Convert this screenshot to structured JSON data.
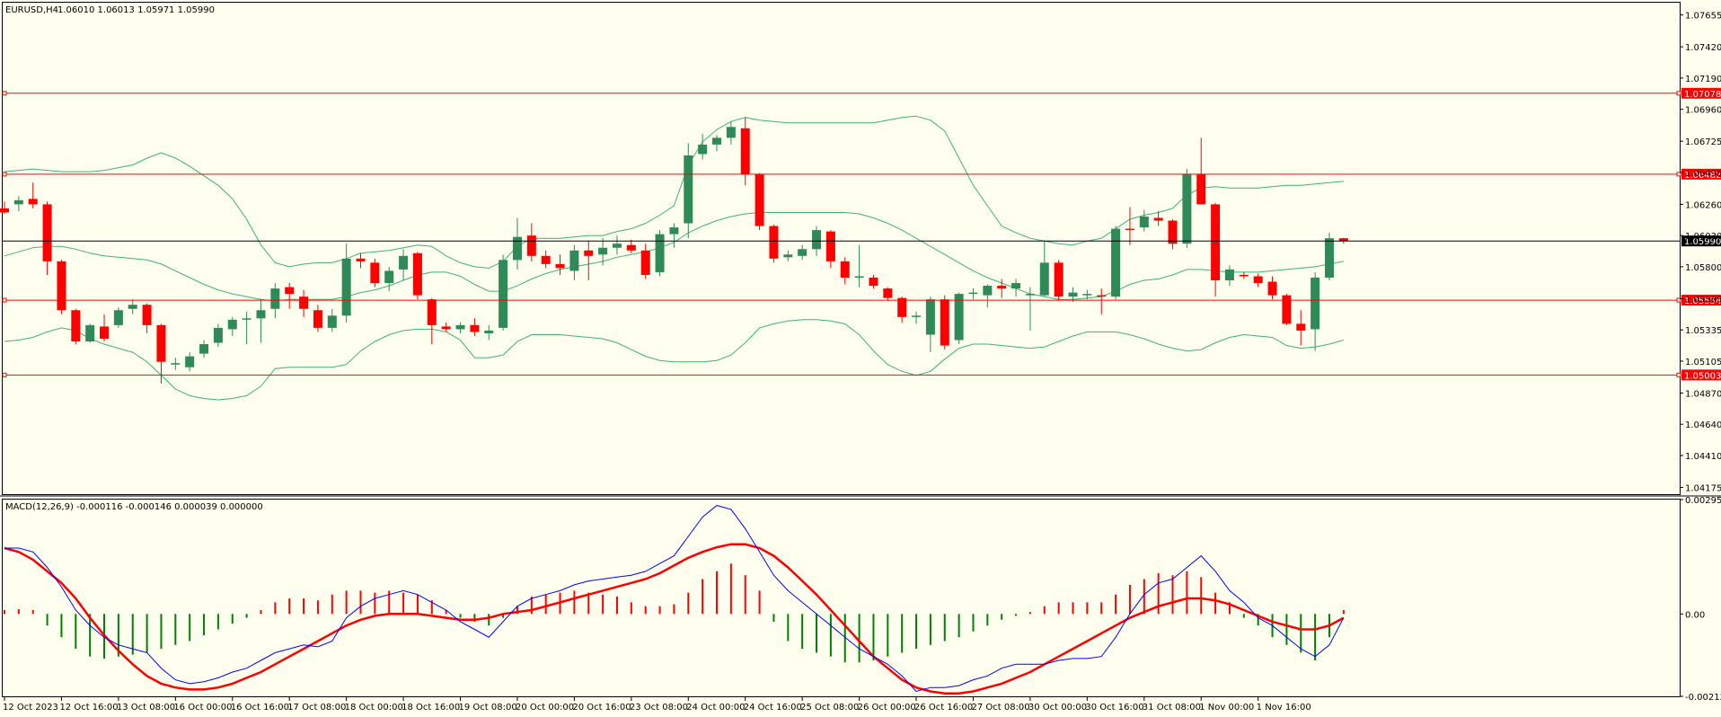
{
  "main_header": {
    "symbol": "EURUSD,H4",
    "ohlc": "1.06010 1.06013 1.05971 1.05990"
  },
  "macd_header": {
    "text": "MACD(12,26,9) -0.000116 -0.000146 0.000039 0.000000"
  },
  "price_axis": {
    "ticks": [
      "1.07655",
      "1.07420",
      "1.07190",
      "1.06960",
      "1.06725",
      "1.06495",
      "1.06260",
      "1.06030",
      "1.05800",
      "1.05565",
      "1.05335",
      "1.05105",
      "1.04870",
      "1.04640",
      "1.04410",
      "1.04175"
    ]
  },
  "macd_axis": {
    "ticks": [
      "0.002952",
      "0.00",
      "-0.002127"
    ]
  },
  "time_axis": {
    "labels": [
      "12 Oct 2023",
      "12 Oct 16:00",
      "13 Oct 08:00",
      "16 Oct 00:00",
      "16 Oct 16:00",
      "17 Oct 08:00",
      "18 Oct 00:00",
      "18 Oct 16:00",
      "19 Oct 08:00",
      "20 Oct 00:00",
      "20 Oct 16:00",
      "23 Oct 08:00",
      "24 Oct 00:00",
      "24 Oct 16:00",
      "25 Oct 08:00",
      "26 Oct 00:00",
      "26 Oct 16:00",
      "27 Oct 08:00",
      "30 Oct 00:00",
      "30 Oct 16:00",
      "31 Oct 08:00",
      "1 Nov 00:00",
      "1 Nov 16:00"
    ]
  },
  "levels": [
    {
      "price": "1.07078",
      "color": "#ff0000"
    },
    {
      "price": "1.06482",
      "color": "#ff0000"
    },
    {
      "price": "1.05990",
      "color": "#000000"
    },
    {
      "price": "1.05554",
      "color": "#ff0000"
    },
    {
      "price": "1.05003",
      "color": "#ff0000"
    }
  ],
  "colors": {
    "background": "#fffff0",
    "bull": "#2e8b57",
    "bear": "#ff0000",
    "bands": "#3cb371",
    "macd_line": "#0000ff",
    "signal_line": "#ff0000",
    "hist_positive": "#ff0000",
    "hist_negative": "#008000",
    "grid": "#000000"
  },
  "chart_data": {
    "type": "candlestick",
    "symbol": "EURUSD",
    "timeframe": "H4",
    "price_range": [
      1.04125,
      1.07745
    ],
    "candles": [
      {
        "o": 1.0623,
        "h": 1.0628,
        "l": 1.0619,
        "c": 1.062
      },
      {
        "o": 1.0626,
        "h": 1.0632,
        "l": 1.0621,
        "c": 1.0629
      },
      {
        "o": 1.063,
        "h": 1.0642,
        "l": 1.0623,
        "c": 1.0626
      },
      {
        "o": 1.0626,
        "h": 1.0628,
        "l": 1.0574,
        "c": 1.0584
      },
      {
        "o": 1.0584,
        "h": 1.0585,
        "l": 1.0545,
        "c": 1.0548
      },
      {
        "o": 1.0548,
        "h": 1.0549,
        "l": 1.0523,
        "c": 1.0525
      },
      {
        "o": 1.0525,
        "h": 1.0538,
        "l": 1.0524,
        "c": 1.0537
      },
      {
        "o": 1.0536,
        "h": 1.0545,
        "l": 1.0525,
        "c": 1.0527
      },
      {
        "o": 1.0537,
        "h": 1.055,
        "l": 1.0535,
        "c": 1.0548
      },
      {
        "o": 1.0549,
        "h": 1.0556,
        "l": 1.0545,
        "c": 1.0552
      },
      {
        "o": 1.0552,
        "h": 1.0553,
        "l": 1.0531,
        "c": 1.0537
      },
      {
        "o": 1.0537,
        "h": 1.0538,
        "l": 1.0494,
        "c": 1.051
      },
      {
        "o": 1.0508,
        "h": 1.0513,
        "l": 1.0504,
        "c": 1.0509
      },
      {
        "o": 1.0506,
        "h": 1.0517,
        "l": 1.0503,
        "c": 1.0514
      },
      {
        "o": 1.0516,
        "h": 1.0526,
        "l": 1.0513,
        "c": 1.0523
      },
      {
        "o": 1.0524,
        "h": 1.0538,
        "l": 1.0521,
        "c": 1.0535
      },
      {
        "o": 1.0534,
        "h": 1.0543,
        "l": 1.0529,
        "c": 1.0541
      },
      {
        "o": 1.0541,
        "h": 1.0547,
        "l": 1.0523,
        "c": 1.0542
      },
      {
        "o": 1.0542,
        "h": 1.0556,
        "l": 1.0524,
        "c": 1.0548
      },
      {
        "o": 1.0549,
        "h": 1.0568,
        "l": 1.0542,
        "c": 1.0564
      },
      {
        "o": 1.0565,
        "h": 1.0568,
        "l": 1.0549,
        "c": 1.056
      },
      {
        "o": 1.0558,
        "h": 1.0563,
        "l": 1.0543,
        "c": 1.0549
      },
      {
        "o": 1.0548,
        "h": 1.0552,
        "l": 1.0532,
        "c": 1.0535
      },
      {
        "o": 1.0535,
        "h": 1.0549,
        "l": 1.0532,
        "c": 1.0544
      },
      {
        "o": 1.0544,
        "h": 1.0597,
        "l": 1.0539,
        "c": 1.0586
      },
      {
        "o": 1.0586,
        "h": 1.059,
        "l": 1.0579,
        "c": 1.0584
      },
      {
        "o": 1.0583,
        "h": 1.0586,
        "l": 1.0565,
        "c": 1.0568
      },
      {
        "o": 1.0568,
        "h": 1.058,
        "l": 1.0562,
        "c": 1.0577
      },
      {
        "o": 1.0578,
        "h": 1.0593,
        "l": 1.057,
        "c": 1.0588
      },
      {
        "o": 1.059,
        "h": 1.0591,
        "l": 1.0556,
        "c": 1.0559
      },
      {
        "o": 1.0556,
        "h": 1.0557,
        "l": 1.0523,
        "c": 1.0537
      },
      {
        "o": 1.0536,
        "h": 1.0539,
        "l": 1.0532,
        "c": 1.0534
      },
      {
        "o": 1.0534,
        "h": 1.0539,
        "l": 1.0531,
        "c": 1.0537
      },
      {
        "o": 1.0537,
        "h": 1.0542,
        "l": 1.0529,
        "c": 1.0532
      },
      {
        "o": 1.0531,
        "h": 1.0537,
        "l": 1.0526,
        "c": 1.0533
      },
      {
        "o": 1.0535,
        "h": 1.0589,
        "l": 1.0533,
        "c": 1.0585
      },
      {
        "o": 1.0585,
        "h": 1.0616,
        "l": 1.0578,
        "c": 1.0602
      },
      {
        "o": 1.0603,
        "h": 1.0612,
        "l": 1.0584,
        "c": 1.0588
      },
      {
        "o": 1.0588,
        "h": 1.0592,
        "l": 1.0579,
        "c": 1.0582
      },
      {
        "o": 1.0582,
        "h": 1.0589,
        "l": 1.0574,
        "c": 1.0579
      },
      {
        "o": 1.0577,
        "h": 1.0596,
        "l": 1.057,
        "c": 1.0592
      },
      {
        "o": 1.0592,
        "h": 1.0599,
        "l": 1.057,
        "c": 1.0588
      },
      {
        "o": 1.0589,
        "h": 1.0601,
        "l": 1.0581,
        "c": 1.0594
      },
      {
        "o": 1.0594,
        "h": 1.0603,
        "l": 1.0589,
        "c": 1.0597
      },
      {
        "o": 1.0596,
        "h": 1.06,
        "l": 1.059,
        "c": 1.0592
      },
      {
        "o": 1.0592,
        "h": 1.0597,
        "l": 1.0571,
        "c": 1.0574
      },
      {
        "o": 1.0576,
        "h": 1.0607,
        "l": 1.0573,
        "c": 1.0604
      },
      {
        "o": 1.0604,
        "h": 1.0612,
        "l": 1.0594,
        "c": 1.0609
      },
      {
        "o": 1.0612,
        "h": 1.0671,
        "l": 1.0601,
        "c": 1.0662
      },
      {
        "o": 1.0663,
        "h": 1.0678,
        "l": 1.0659,
        "c": 1.067
      },
      {
        "o": 1.067,
        "h": 1.0677,
        "l": 1.0665,
        "c": 1.0675
      },
      {
        "o": 1.0675,
        "h": 1.0687,
        "l": 1.067,
        "c": 1.0683
      },
      {
        "o": 1.0682,
        "h": 1.069,
        "l": 1.064,
        "c": 1.0648
      },
      {
        "o": 1.0648,
        "h": 1.0649,
        "l": 1.0607,
        "c": 1.061
      },
      {
        "o": 1.061,
        "h": 1.0611,
        "l": 1.0583,
        "c": 1.0586
      },
      {
        "o": 1.0587,
        "h": 1.0592,
        "l": 1.0584,
        "c": 1.0589
      },
      {
        "o": 1.0588,
        "h": 1.0596,
        "l": 1.0585,
        "c": 1.0593
      },
      {
        "o": 1.0593,
        "h": 1.061,
        "l": 1.0588,
        "c": 1.0607
      },
      {
        "o": 1.0606,
        "h": 1.0607,
        "l": 1.0579,
        "c": 1.0584
      },
      {
        "o": 1.0584,
        "h": 1.0587,
        "l": 1.0567,
        "c": 1.0572
      },
      {
        "o": 1.0572,
        "h": 1.0596,
        "l": 1.0565,
        "c": 1.0573
      },
      {
        "o": 1.0572,
        "h": 1.0574,
        "l": 1.0564,
        "c": 1.0566
      },
      {
        "o": 1.0564,
        "h": 1.0565,
        "l": 1.0555,
        "c": 1.0557
      },
      {
        "o": 1.0557,
        "h": 1.0558,
        "l": 1.0539,
        "c": 1.0543
      },
      {
        "o": 1.0543,
        "h": 1.0547,
        "l": 1.0538,
        "c": 1.0544
      },
      {
        "o": 1.053,
        "h": 1.0558,
        "l": 1.0517,
        "c": 1.0556
      },
      {
        "o": 1.0556,
        "h": 1.0559,
        "l": 1.0519,
        "c": 1.0522
      },
      {
        "o": 1.0526,
        "h": 1.0561,
        "l": 1.0523,
        "c": 1.056
      },
      {
        "o": 1.056,
        "h": 1.0564,
        "l": 1.0556,
        "c": 1.0561
      },
      {
        "o": 1.0559,
        "h": 1.0567,
        "l": 1.055,
        "c": 1.0566
      },
      {
        "o": 1.0566,
        "h": 1.0571,
        "l": 1.0557,
        "c": 1.0564
      },
      {
        "o": 1.0564,
        "h": 1.0571,
        "l": 1.0558,
        "c": 1.0568
      },
      {
        "o": 1.0559,
        "h": 1.0565,
        "l": 1.0533,
        "c": 1.056
      },
      {
        "o": 1.0559,
        "h": 1.0599,
        "l": 1.0558,
        "c": 1.0583
      },
      {
        "o": 1.0583,
        "h": 1.0585,
        "l": 1.0555,
        "c": 1.0558
      },
      {
        "o": 1.0558,
        "h": 1.0565,
        "l": 1.0554,
        "c": 1.0561
      },
      {
        "o": 1.0559,
        "h": 1.0563,
        "l": 1.0556,
        "c": 1.056
      },
      {
        "o": 1.0559,
        "h": 1.0564,
        "l": 1.0545,
        "c": 1.0558
      },
      {
        "o": 1.0558,
        "h": 1.061,
        "l": 1.0556,
        "c": 1.0608
      },
      {
        "o": 1.0608,
        "h": 1.0624,
        "l": 1.0596,
        "c": 1.0607
      },
      {
        "o": 1.0609,
        "h": 1.0622,
        "l": 1.0606,
        "c": 1.0617
      },
      {
        "o": 1.0616,
        "h": 1.0621,
        "l": 1.061,
        "c": 1.0614
      },
      {
        "o": 1.0614,
        "h": 1.0615,
        "l": 1.0593,
        "c": 1.0597
      },
      {
        "o": 1.0597,
        "h": 1.0652,
        "l": 1.0594,
        "c": 1.0648
      },
      {
        "o": 1.0648,
        "h": 1.0675,
        "l": 1.0627,
        "c": 1.0626
      },
      {
        "o": 1.0626,
        "h": 1.0627,
        "l": 1.0558,
        "c": 1.057
      },
      {
        "o": 1.057,
        "h": 1.0581,
        "l": 1.0566,
        "c": 1.0578
      },
      {
        "o": 1.0574,
        "h": 1.0576,
        "l": 1.0571,
        "c": 1.0573
      },
      {
        "o": 1.0573,
        "h": 1.0575,
        "l": 1.0565,
        "c": 1.0568
      },
      {
        "o": 1.0569,
        "h": 1.0573,
        "l": 1.0556,
        "c": 1.0559
      },
      {
        "o": 1.0559,
        "h": 1.056,
        "l": 1.0537,
        "c": 1.0538
      },
      {
        "o": 1.0538,
        "h": 1.0548,
        "l": 1.0522,
        "c": 1.0533
      },
      {
        "o": 1.0534,
        "h": 1.0576,
        "l": 1.0518,
        "c": 1.0572
      },
      {
        "o": 1.0572,
        "h": 1.0605,
        "l": 1.057,
        "c": 1.0601
      },
      {
        "o": 1.0601,
        "h": 1.06013,
        "l": 1.05971,
        "c": 1.0599
      }
    ],
    "bollinger_upper": [
      1.065,
      1.0651,
      1.0652,
      1.0651,
      1.065,
      1.065,
      1.065,
      1.0651,
      1.0653,
      1.0655,
      1.066,
      1.0664,
      1.066,
      1.0654,
      1.0647,
      1.064,
      1.063,
      1.0615,
      1.0596,
      1.0583,
      1.058,
      1.0582,
      1.0583,
      1.0583,
      1.0586,
      1.059,
      1.0591,
      1.0592,
      1.0594,
      1.0596,
      1.0595,
      1.0588,
      1.0583,
      1.058,
      1.0579,
      1.0584,
      1.0595,
      1.0601,
      1.0601,
      1.0601,
      1.0602,
      1.0603,
      1.0603,
      1.0606,
      1.0608,
      1.0612,
      1.0618,
      1.0625,
      1.0655,
      1.0672,
      1.0681,
      1.0687,
      1.069,
      1.0688,
      1.0687,
      1.0686,
      1.0686,
      1.0686,
      1.0686,
      1.0686,
      1.0686,
      1.0686,
      1.0688,
      1.069,
      1.0691,
      1.0688,
      1.068,
      1.066,
      1.064,
      1.0625,
      1.061,
      1.0605,
      1.0601,
      1.0599,
      1.0597,
      1.0596,
      1.0599,
      1.0601,
      1.0608,
      1.0615,
      1.0618,
      1.062,
      1.0623,
      1.0633,
      1.0638,
      1.0639,
      1.0638,
      1.0638,
      1.0638,
      1.0639,
      1.064,
      1.064,
      1.0641,
      1.0642,
      1.0643
    ],
    "bollinger_middle": [
      1.0588,
      1.0591,
      1.0594,
      1.0595,
      1.0595,
      1.0593,
      1.059,
      1.0588,
      1.0587,
      1.0586,
      1.0585,
      1.0582,
      1.0577,
      1.0572,
      1.0567,
      1.0563,
      1.056,
      1.0558,
      1.0556,
      1.0555,
      1.0556,
      1.0556,
      1.0556,
      1.0556,
      1.0558,
      1.0561,
      1.0563,
      1.0566,
      1.057,
      1.0574,
      1.0576,
      1.0576,
      1.0573,
      1.0567,
      1.0562,
      1.0562,
      1.0566,
      1.0571,
      1.0575,
      1.0578,
      1.058,
      1.0582,
      1.0584,
      1.0587,
      1.0589,
      1.0591,
      1.0594,
      1.0598,
      1.0605,
      1.061,
      1.0614,
      1.0617,
      1.0619,
      1.062,
      1.062,
      1.062,
      1.062,
      1.062,
      1.062,
      1.062,
      1.0619,
      1.0616,
      1.0612,
      1.0607,
      1.0601,
      1.0595,
      1.0589,
      1.0583,
      1.0577,
      1.0572,
      1.0568,
      1.0564,
      1.056,
      1.0558,
      1.0556,
      1.0556,
      1.0557,
      1.0558,
      1.0562,
      1.0567,
      1.057,
      1.0571,
      1.0574,
      1.0578,
      1.0578,
      1.0577,
      1.0576,
      1.0576,
      1.0576,
      1.0577,
      1.0578,
      1.0579,
      1.058,
      1.0582,
      1.0584
    ],
    "bollinger_lower": [
      1.0525,
      1.0526,
      1.0528,
      1.0532,
      1.0535,
      1.0533,
      1.0527,
      1.0523,
      1.052,
      1.0517,
      1.051,
      1.05,
      1.049,
      1.0485,
      1.0483,
      1.0482,
      1.0483,
      1.0485,
      1.0492,
      1.0505,
      1.0506,
      1.0506,
      1.0506,
      1.0506,
      1.0508,
      1.0518,
      1.0525,
      1.053,
      1.0533,
      1.0534,
      1.0534,
      1.0532,
      1.0526,
      1.0513,
      1.0513,
      1.0515,
      1.0525,
      1.053,
      1.053,
      1.053,
      1.0529,
      1.0528,
      1.0527,
      1.0524,
      1.0519,
      1.0514,
      1.0511,
      1.051,
      1.051,
      1.051,
      1.0511,
      1.0515,
      1.0524,
      1.0535,
      1.0538,
      1.054,
      1.0541,
      1.0541,
      1.054,
      1.0538,
      1.053,
      1.0518,
      1.0508,
      1.0503,
      1.05,
      1.0503,
      1.0512,
      1.052,
      1.0523,
      1.0523,
      1.0522,
      1.0521,
      1.052,
      1.0521,
      1.0525,
      1.0529,
      1.0532,
      1.0532,
      1.0532,
      1.053,
      1.0527,
      1.0523,
      1.052,
      1.0518,
      1.0519,
      1.0524,
      1.0528,
      1.053,
      1.0529,
      1.0528,
      1.0522,
      1.052,
      1.0521,
      1.0523,
      1.0526
    ],
    "macd_range": [
      -0.002127,
      0.002952
    ],
    "macd_main": [
      0.0017,
      0.0017,
      0.0016,
      0.0012,
      0.0007,
      0.0001,
      -0.0003,
      -0.0006,
      -0.0008,
      -0.0009,
      -0.001,
      -0.0014,
      -0.0017,
      -0.0018,
      -0.00175,
      -0.00165,
      -0.0015,
      -0.0014,
      -0.0012,
      -0.001,
      -0.0009,
      -0.0008,
      -0.00085,
      -0.0007,
      -0.0001,
      0.0002,
      0.0004,
      0.0005,
      0.0006,
      0.0005,
      0.0003,
      0.0001,
      -0.0002,
      -0.0004,
      -0.0006,
      -0.0002,
      0.0002,
      0.0004,
      0.0005,
      0.0006,
      0.00075,
      0.00085,
      0.0009,
      0.00095,
      0.001,
      0.0011,
      0.0013,
      0.0015,
      0.002,
      0.0025,
      0.0028,
      0.0027,
      0.0022,
      0.0016,
      0.001,
      0.0006,
      0.0003,
      0.0,
      -0.0003,
      -0.0006,
      -0.0009,
      -0.0011,
      -0.0013,
      -0.0016,
      -0.002,
      -0.0019,
      -0.0019,
      -0.00185,
      -0.0017,
      -0.0016,
      -0.0014,
      -0.0013,
      -0.0013,
      -0.0013,
      -0.0012,
      -0.00115,
      -0.00115,
      -0.0011,
      -0.0006,
      0.0,
      0.0005,
      0.0008,
      0.0009,
      0.0012,
      0.0015,
      0.0011,
      0.0006,
      0.0003,
      -0.0001,
      -0.0003,
      -0.0006,
      -0.0009,
      -0.0011,
      -0.0008,
      -0.0001
    ],
    "macd_signal": [
      0.0017,
      0.0016,
      0.0014,
      0.0011,
      0.0008,
      0.0004,
      -0.0001,
      -0.00055,
      -0.00095,
      -0.0013,
      -0.0016,
      -0.0018,
      -0.0019,
      -0.00195,
      -0.00195,
      -0.0019,
      -0.0018,
      -0.00165,
      -0.0015,
      -0.0013,
      -0.0011,
      -0.0009,
      -0.0007,
      -0.0005,
      -0.0003,
      -0.00015,
      -5e-05,
      0.0,
      0.0,
      0.0,
      -5e-05,
      -0.0001,
      -0.00015,
      -0.00015,
      -0.0001,
      0.0,
      5e-05,
      0.0001,
      0.0002,
      0.0003,
      0.0004,
      0.0005,
      0.0006,
      0.0007,
      0.0008,
      0.0009,
      0.00105,
      0.00125,
      0.00145,
      0.0016,
      0.00172,
      0.0018,
      0.0018,
      0.0017,
      0.0015,
      0.0012,
      0.00085,
      0.0005,
      0.0001,
      -0.0003,
      -0.0007,
      -0.0011,
      -0.0014,
      -0.0017,
      -0.0019,
      -0.002,
      -0.00205,
      -0.00205,
      -0.002,
      -0.0019,
      -0.0018,
      -0.00165,
      -0.0015,
      -0.0013,
      -0.0011,
      -0.0009,
      -0.0007,
      -0.0005,
      -0.0003,
      -0.0001,
      5e-05,
      0.0002,
      0.0003,
      0.0004,
      0.0004,
      0.00035,
      0.00025,
      0.0001,
      -5e-05,
      -0.0002,
      -0.0003,
      -0.0004,
      -0.0004,
      -0.0003,
      -0.0001
    ],
    "macd_histogram": [
      0.0001,
      0.00012,
      0.0001,
      -0.0003,
      -0.0006,
      -0.0009,
      -0.0011,
      -0.00115,
      -0.0011,
      -0.00105,
      -0.001,
      -0.0009,
      -0.0008,
      -0.0007,
      -0.00055,
      -0.0004,
      -0.00025,
      -0.0001,
      0.0001,
      0.0003,
      0.0004,
      0.0004,
      0.00035,
      0.0005,
      0.0006,
      0.0006,
      0.00055,
      0.0006,
      0.00055,
      0.0005,
      0.00035,
      0.0001,
      -0.0001,
      -0.0002,
      -0.0003,
      -0.0001,
      0.0002,
      0.00045,
      0.0005,
      0.00055,
      0.0006,
      0.00055,
      0.0005,
      0.00045,
      0.0003,
      0.0002,
      0.0002,
      0.00025,
      0.00055,
      0.0009,
      0.0011,
      0.0013,
      0.001,
      0.0006,
      -0.0002,
      -0.0007,
      -0.0009,
      -0.001,
      -0.0011,
      -0.00125,
      -0.00125,
      -0.0012,
      -0.0011,
      -0.001,
      -0.0009,
      -0.0008,
      -0.0007,
      -0.0006,
      -0.00045,
      -0.0003,
      -0.00015,
      -5e-05,
      5e-05,
      0.0002,
      0.0003,
      0.0003,
      0.0003,
      0.0003,
      0.0005,
      0.00075,
      0.0009,
      0.00105,
      0.001,
      0.0011,
      0.00095,
      0.00055,
      0.0003,
      -0.0001,
      -0.0003,
      -0.0006,
      -0.0008,
      -0.001,
      -0.0012,
      -0.0006,
      0.0001
    ]
  }
}
